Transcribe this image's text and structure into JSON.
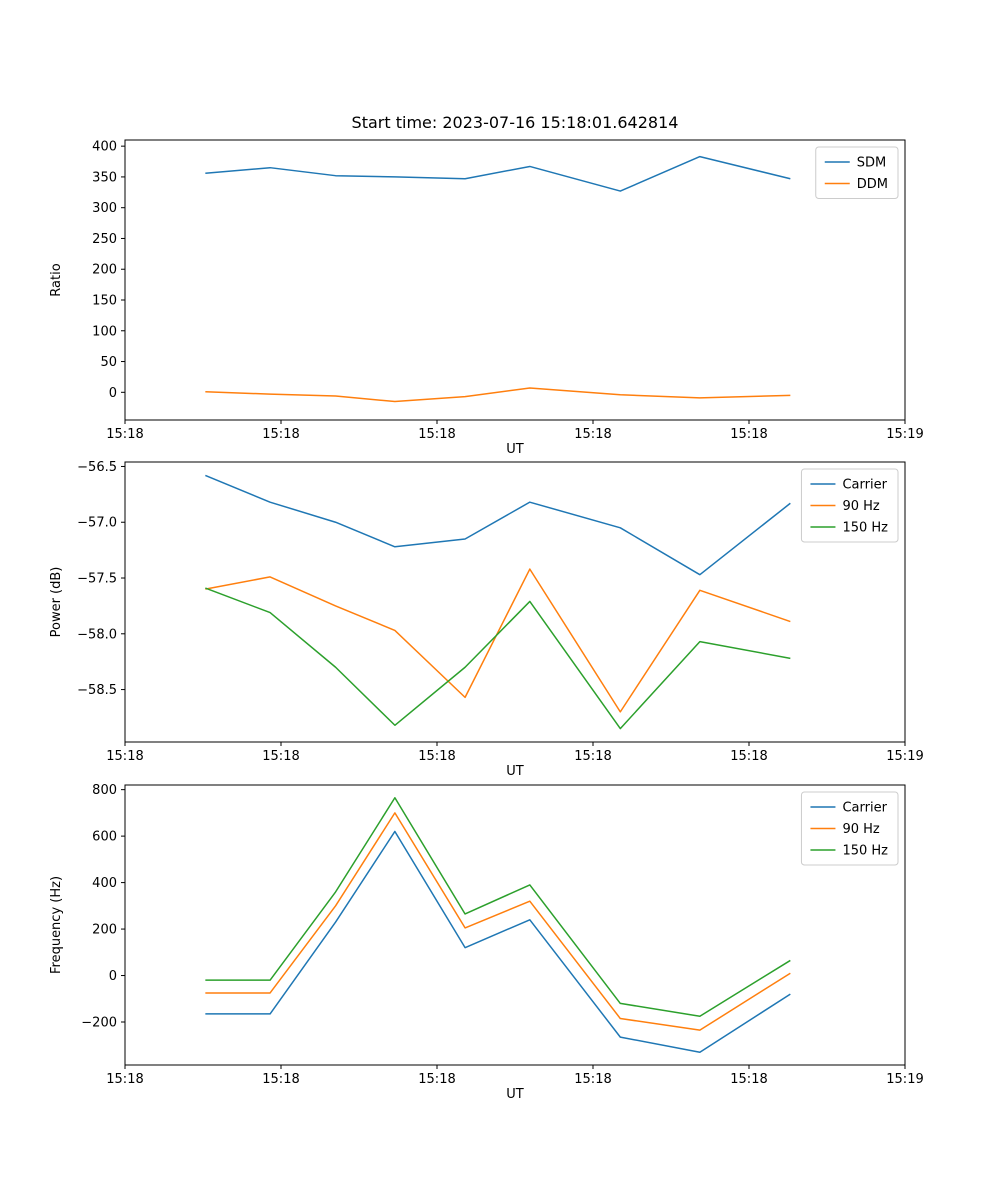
{
  "chart_data": [
    {
      "type": "line",
      "title": "Start time: 2023-07-16 15:18:01.642814",
      "xlabel": "UT",
      "ylabel": "Ratio",
      "x_tick_labels": [
        "15:18",
        "15:18",
        "15:18",
        "15:18",
        "15:18",
        "15:19"
      ],
      "y_ticks": [
        0,
        50,
        100,
        150,
        200,
        250,
        300,
        350,
        400
      ],
      "y_tick_labels": [
        "0",
        "50",
        "100",
        "150",
        "200",
        "250",
        "300",
        "350",
        "400"
      ],
      "ylim": [
        -45,
        410
      ],
      "x": [
        0.103,
        0.186,
        0.27,
        0.346,
        0.436,
        0.519,
        0.635,
        0.737,
        0.853
      ],
      "x_note": "fraction of x-axis span between first tick 15:18 and last tick 15:19",
      "grid": false,
      "legend_position": "upper right",
      "series": [
        {
          "name": "SDM",
          "color": "#1f77b4",
          "values": [
            356,
            365,
            352,
            350,
            347,
            367,
            327,
            383,
            347
          ]
        },
        {
          "name": "DDM",
          "color": "#ff7f0e",
          "values": [
            1,
            -3,
            -6,
            -15,
            -7,
            7,
            -4,
            -9,
            -5
          ]
        }
      ]
    },
    {
      "type": "line",
      "title": "",
      "xlabel": "UT",
      "ylabel": "Power (dB)",
      "x_tick_labels": [
        "15:18",
        "15:18",
        "15:18",
        "15:18",
        "15:18",
        "15:19"
      ],
      "y_ticks": [
        -56.5,
        -57.0,
        -57.5,
        -58.0,
        -58.5
      ],
      "y_tick_labels": [
        "−56.5",
        "−57.0",
        "−57.5",
        "−58.0",
        "−58.5"
      ],
      "ylim": [
        -58.97,
        -56.46
      ],
      "x": [
        0.103,
        0.186,
        0.27,
        0.346,
        0.436,
        0.519,
        0.635,
        0.737,
        0.853
      ],
      "x_note": "fraction of x-axis span between first tick 15:18 and last tick 15:19",
      "grid": false,
      "legend_position": "upper right",
      "series": [
        {
          "name": "Carrier",
          "color": "#1f77b4",
          "values": [
            -56.58,
            -56.82,
            -57.0,
            -57.22,
            -57.15,
            -56.82,
            -57.05,
            -57.47,
            -56.83
          ]
        },
        {
          "name": "90 Hz",
          "color": "#ff7f0e",
          "values": [
            -57.6,
            -57.49,
            -57.75,
            -57.97,
            -58.57,
            -57.42,
            -58.7,
            -57.61,
            -57.89
          ]
        },
        {
          "name": "150 Hz",
          "color": "#2ca02c",
          "values": [
            -57.59,
            -57.81,
            -58.3,
            -58.82,
            -58.3,
            -57.71,
            -58.85,
            -58.07,
            -58.22
          ]
        }
      ]
    },
    {
      "type": "line",
      "title": "",
      "xlabel": "UT",
      "ylabel": "Frequency (Hz)",
      "x_tick_labels": [
        "15:18",
        "15:18",
        "15:18",
        "15:18",
        "15:18",
        "15:19"
      ],
      "y_ticks": [
        -200,
        0,
        200,
        400,
        600,
        800
      ],
      "y_tick_labels": [
        "−200",
        "0",
        "200",
        "400",
        "600",
        "800"
      ],
      "ylim": [
        -385,
        820
      ],
      "x": [
        0.103,
        0.186,
        0.27,
        0.346,
        0.436,
        0.519,
        0.635,
        0.737,
        0.853
      ],
      "x_note": "fraction of x-axis span between first tick 15:18 and last tick 15:19",
      "grid": false,
      "legend_position": "upper right",
      "series": [
        {
          "name": "Carrier",
          "color": "#1f77b4",
          "values": [
            -165,
            -165,
            230,
            620,
            120,
            240,
            -265,
            -330,
            -80
          ]
        },
        {
          "name": "90 Hz",
          "color": "#ff7f0e",
          "values": [
            -75,
            -75,
            300,
            700,
            205,
            320,
            -185,
            -235,
            10
          ]
        },
        {
          "name": "150 Hz",
          "color": "#2ca02c",
          "values": [
            -20,
            -20,
            360,
            765,
            265,
            390,
            -120,
            -175,
            65
          ]
        }
      ]
    }
  ],
  "palette": {
    "blue": "#1f77b4",
    "orange": "#ff7f0e",
    "green": "#2ca02c"
  }
}
